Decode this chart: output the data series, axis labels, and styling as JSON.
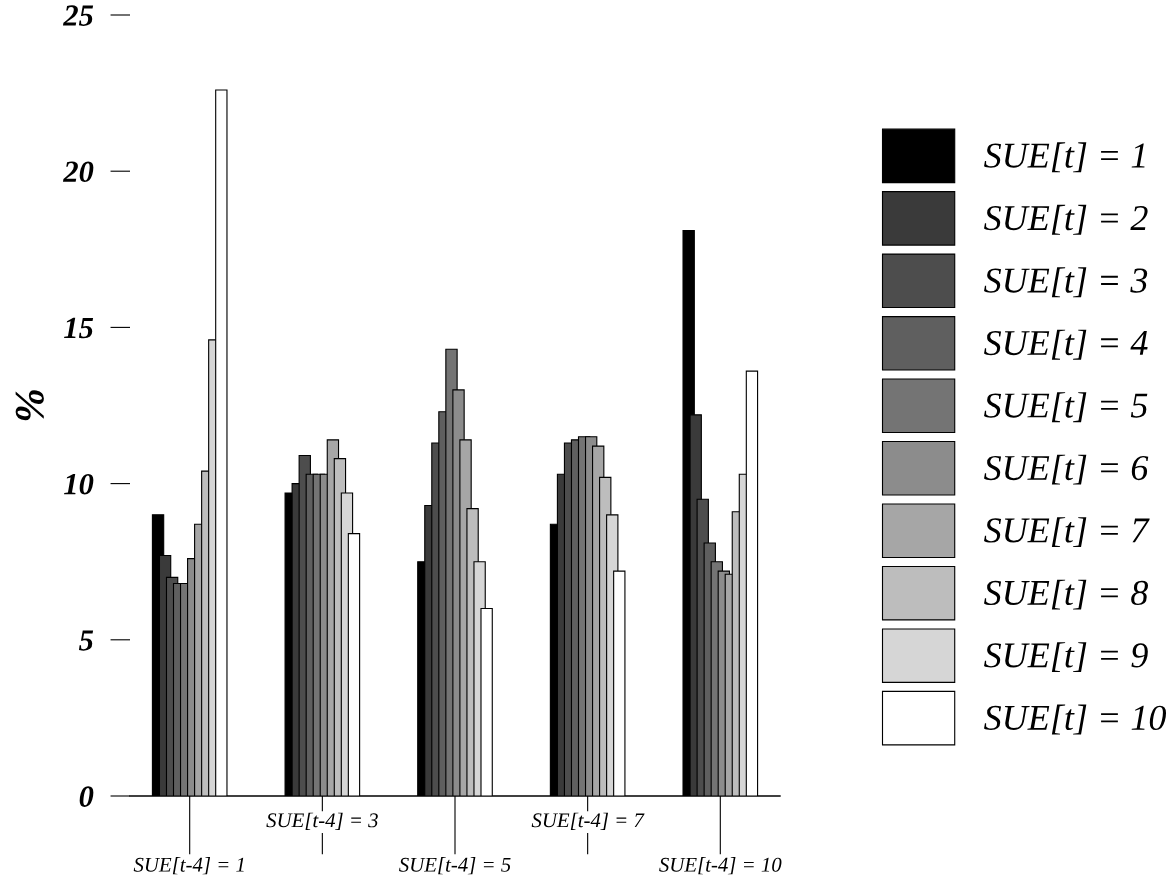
{
  "chart_data": {
    "type": "bar",
    "ylabel": "%",
    "categories": [
      "SUE[t-4] = 1",
      "SUE[t-4] = 3",
      "SUE[t-4] = 5",
      "SUE[t-4] = 7",
      "SUE[t-4] = 10"
    ],
    "series": [
      {
        "name": "SUE[t] = 1",
        "color": "#000000",
        "values": [
          9.0,
          9.7,
          7.5,
          8.7,
          18.1
        ]
      },
      {
        "name": "SUE[t] = 2",
        "color": "#3a3a3a",
        "values": [
          7.7,
          10.0,
          9.3,
          10.3,
          12.2
        ]
      },
      {
        "name": "SUE[t] = 3",
        "color": "#4d4d4d",
        "values": [
          7.0,
          10.9,
          11.3,
          11.3,
          9.5
        ]
      },
      {
        "name": "SUE[t] = 4",
        "color": "#5f5f5f",
        "values": [
          6.8,
          10.3,
          12.3,
          11.4,
          8.1
        ]
      },
      {
        "name": "SUE[t] = 5",
        "color": "#747474",
        "values": [
          6.8,
          10.3,
          14.3,
          11.5,
          7.5
        ]
      },
      {
        "name": "SUE[t] = 6",
        "color": "#8c8c8c",
        "values": [
          7.6,
          10.3,
          13.0,
          11.5,
          7.2
        ]
      },
      {
        "name": "SUE[t] = 7",
        "color": "#a6a6a6",
        "values": [
          8.7,
          11.4,
          11.4,
          11.2,
          7.1
        ]
      },
      {
        "name": "SUE[t] = 8",
        "color": "#bdbdbd",
        "values": [
          10.4,
          10.8,
          9.2,
          10.2,
          9.1
        ]
      },
      {
        "name": "SUE[t] = 9",
        "color": "#d6d6d6",
        "values": [
          14.6,
          9.7,
          7.5,
          9.0,
          10.3
        ]
      },
      {
        "name": "SUE[t] = 10",
        "color": "#ffffff",
        "values": [
          22.6,
          8.4,
          6.0,
          7.2,
          13.6
        ]
      }
    ],
    "ylim": [
      0,
      25
    ],
    "yticks": [
      0,
      5,
      10,
      15,
      20,
      25
    ],
    "grid": false,
    "legend": "right"
  }
}
